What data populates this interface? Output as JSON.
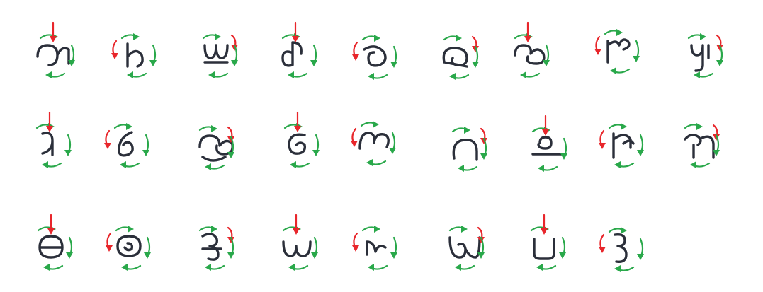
{
  "chart_title": "",
  "colors": {
    "glyph": "#2b2f3a",
    "start_arrow": "#e8262b",
    "direction_arrow": "#29a84a",
    "background": "#ffffff"
  },
  "glyphs": [
    {
      "name": "stroke-order-glyph-1"
    },
    {
      "name": "stroke-order-glyph-2"
    },
    {
      "name": "stroke-order-glyph-3"
    },
    {
      "name": "stroke-order-glyph-4"
    },
    {
      "name": "stroke-order-glyph-5"
    },
    {
      "name": "stroke-order-glyph-6"
    },
    {
      "name": "stroke-order-glyph-7"
    },
    {
      "name": "stroke-order-glyph-8"
    },
    {
      "name": "stroke-order-glyph-9"
    },
    {
      "name": "stroke-order-glyph-10"
    },
    {
      "name": "stroke-order-glyph-11"
    },
    {
      "name": "stroke-order-glyph-12"
    },
    {
      "name": "stroke-order-glyph-13"
    },
    {
      "name": "stroke-order-glyph-14"
    },
    {
      "name": "stroke-order-glyph-15"
    },
    {
      "name": "stroke-order-glyph-16"
    },
    {
      "name": "stroke-order-glyph-17"
    },
    {
      "name": "stroke-order-glyph-18"
    },
    {
      "name": "stroke-order-glyph-19"
    },
    {
      "name": "stroke-order-glyph-20"
    },
    {
      "name": "stroke-order-glyph-21"
    },
    {
      "name": "stroke-order-glyph-22"
    },
    {
      "name": "stroke-order-glyph-23"
    },
    {
      "name": "stroke-order-glyph-24"
    },
    {
      "name": "stroke-order-glyph-25"
    },
    {
      "name": "stroke-order-glyph-26"
    }
  ]
}
